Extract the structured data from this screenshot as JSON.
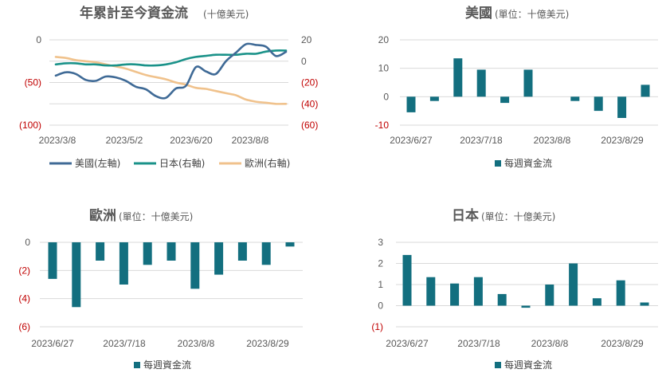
{
  "colors": {
    "us": "#3f6a96",
    "jp": "#1a9289",
    "eu": "#f0c28c",
    "bar": "#136f7f",
    "negative_tick": "#c00000"
  },
  "chart_data": [
    {
      "id": "cumulative",
      "type": "line",
      "title": "年累計至今資金流",
      "subtitle": "(十億美元)",
      "x_ticks": [
        "2023/3/8",
        "2023/5/2",
        "2023/6/20",
        "2023/8/8"
      ],
      "left_axis": {
        "ticks": [
          "0",
          "(50)",
          "(100)"
        ],
        "values": [
          0,
          -50,
          -100
        ],
        "ylim": [
          -100,
          0
        ]
      },
      "right_axis": {
        "ticks": [
          "20",
          "0",
          "(20)",
          "(40)",
          "(60)"
        ],
        "values": [
          20,
          0,
          -20,
          -40,
          -60
        ],
        "ylim": [
          -60,
          20
        ]
      },
      "grid": true,
      "legend_position": "bottom",
      "series": [
        {
          "name": "美國(左軸)",
          "axis": "left",
          "values": [
            -42,
            -38,
            -40,
            -47,
            -48,
            -43,
            -44,
            -48,
            -55,
            -58,
            -66,
            -68,
            -57,
            -54,
            -32,
            -37,
            -40,
            -25,
            -15,
            -5,
            -6,
            -8,
            -19,
            -14
          ]
        },
        {
          "name": "日本(右軸)",
          "axis": "right",
          "values": [
            -3,
            -2,
            -2,
            -3,
            -3,
            -4,
            -4,
            -3,
            -3,
            -4,
            -4,
            -3,
            -1,
            2,
            4,
            5,
            6,
            6,
            6,
            7,
            7,
            9,
            10,
            10
          ]
        },
        {
          "name": "歐洲(右軸)",
          "axis": "right",
          "values": [
            4,
            3,
            1,
            0,
            -1,
            -3,
            -5,
            -7,
            -10,
            -13,
            -15,
            -17,
            -20,
            -22,
            -25,
            -26,
            -28,
            -30,
            -32,
            -36,
            -38,
            -39,
            -40,
            -40
          ]
        }
      ]
    },
    {
      "id": "us",
      "type": "bar",
      "title": "美國",
      "subtitle": "(單位：十億美元)",
      "x_ticks": [
        "2023/6/27",
        "2023/7/18",
        "2023/8/8",
        "2023/8/29"
      ],
      "y_ticks": [
        "20",
        "10",
        "0",
        "-10"
      ],
      "y_values": [
        20,
        10,
        0,
        -10
      ],
      "ylim": [
        -10,
        20
      ],
      "legend": "每週資金流",
      "series": [
        {
          "name": "每週資金流",
          "values": [
            -5.5,
            -1.5,
            13.5,
            9.5,
            -2.2,
            9.5,
            0,
            -1.5,
            -5,
            -7.5,
            4.2
          ]
        }
      ]
    },
    {
      "id": "eu",
      "type": "bar",
      "title": "歐洲",
      "subtitle": "(單位：十億美元)",
      "x_ticks": [
        "2023/6/27",
        "2023/7/18",
        "2023/8/8",
        "2023/8/29"
      ],
      "y_ticks": [
        "0",
        "(2)",
        "(4)",
        "(6)"
      ],
      "y_values": [
        0,
        -2,
        -4,
        -6
      ],
      "ylim": [
        -6,
        0
      ],
      "legend": "每週資金流",
      "series": [
        {
          "name": "每週資金流",
          "values": [
            -2.6,
            -4.6,
            -1.3,
            -3.0,
            -1.6,
            -1.3,
            -3.3,
            -2.3,
            -1.3,
            -1.6,
            -0.3
          ]
        }
      ]
    },
    {
      "id": "jp",
      "type": "bar",
      "title": "日本",
      "subtitle": "(單位：十億美元)",
      "x_ticks": [
        "2023/6/27",
        "2023/7/18",
        "2023/8/8",
        "2023/8/29"
      ],
      "y_ticks": [
        "3",
        "2",
        "1",
        "0",
        "(1)"
      ],
      "y_values": [
        3,
        2,
        1,
        0,
        -1
      ],
      "ylim": [
        -1,
        3
      ],
      "legend": "每週資金流",
      "series": [
        {
          "name": "每週資金流",
          "values": [
            2.4,
            1.35,
            1.05,
            1.35,
            0.55,
            -0.1,
            1.0,
            2.0,
            0.35,
            1.2,
            0.15
          ]
        }
      ]
    }
  ]
}
